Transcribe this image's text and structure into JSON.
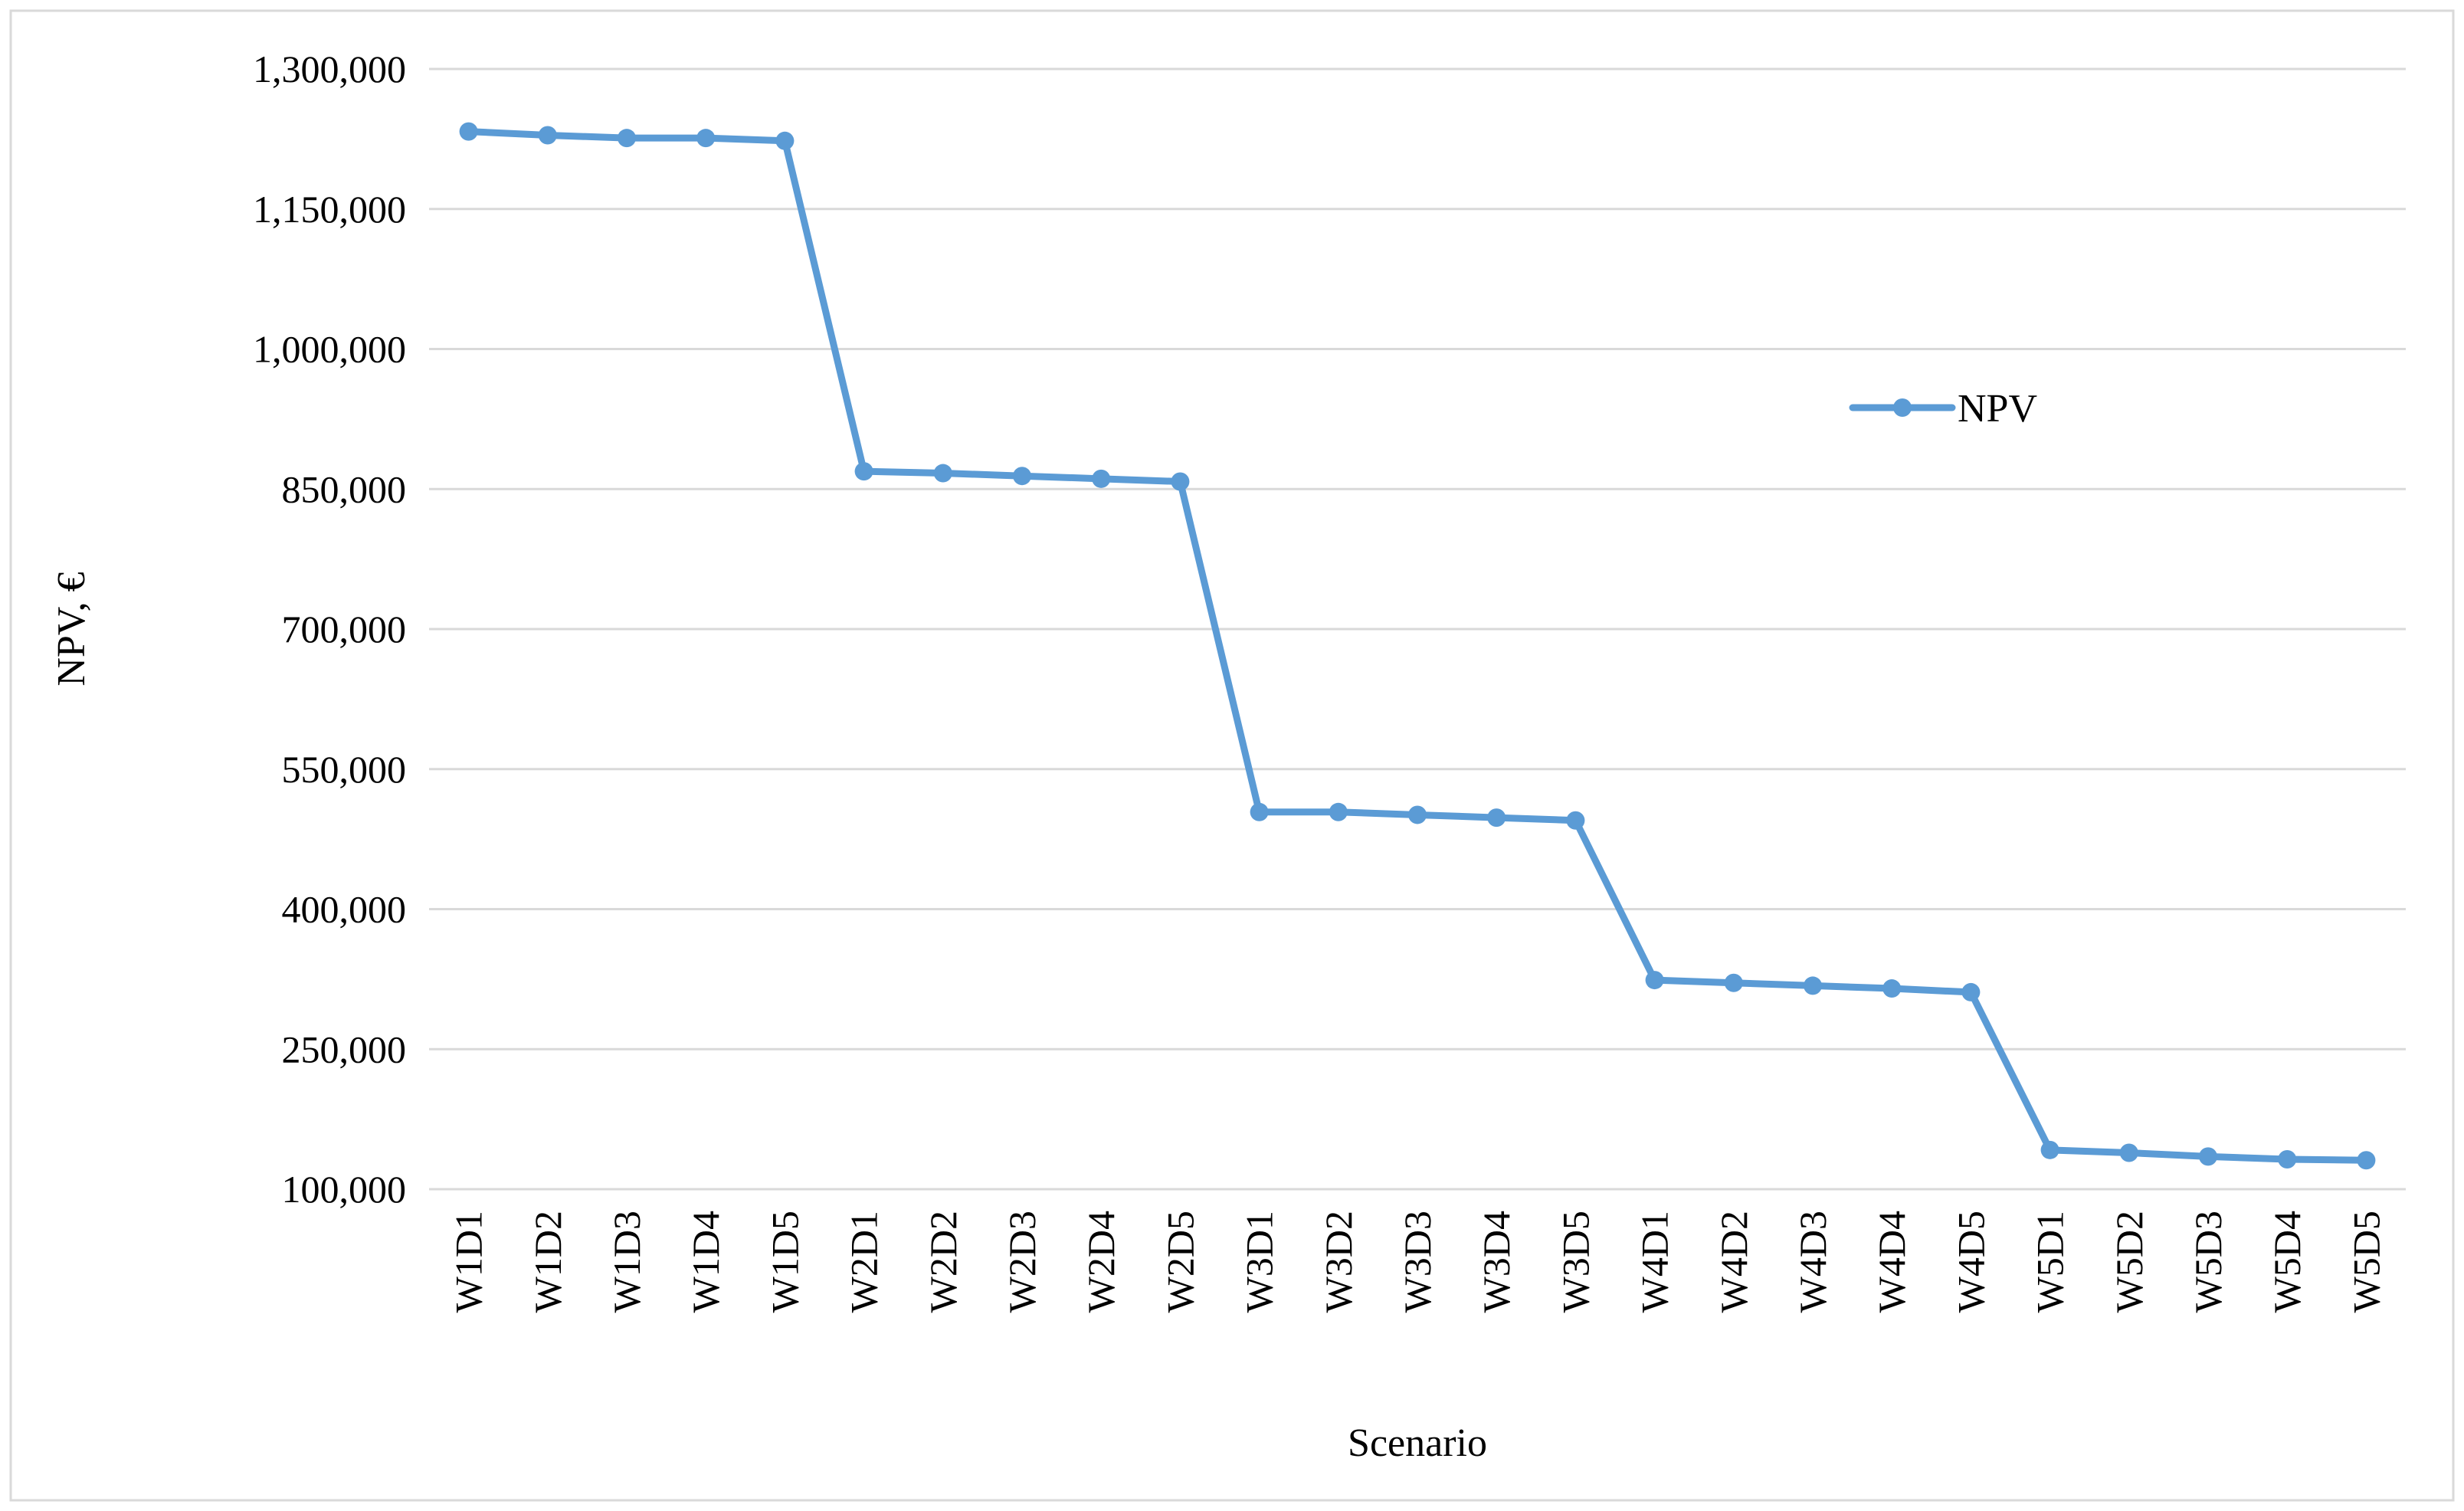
{
  "chart_data": {
    "type": "line",
    "categories": [
      "W1D1",
      "W1D2",
      "W1D3",
      "W1D4",
      "W1D5",
      "W2D1",
      "W2D2",
      "W2D3",
      "W2D4",
      "W2D5",
      "W3D1",
      "W3D2",
      "W3D3",
      "W3D4",
      "W3D5",
      "W4D1",
      "W4D2",
      "W4D3",
      "W4D4",
      "W4D5",
      "W5D1",
      "W5D2",
      "W5D3",
      "W5D4",
      "W5D5"
    ],
    "series": [
      {
        "name": "NPV",
        "color": "#5b9bd5",
        "values": [
          1233000,
          1229000,
          1226000,
          1226000,
          1223000,
          869000,
          867000,
          864000,
          861000,
          858000,
          504000,
          504000,
          501000,
          498000,
          495000,
          324000,
          321000,
          318000,
          315000,
          311000,
          142000,
          139000,
          135000,
          132000,
          131000
        ]
      }
    ],
    "xlabel": "Scenario",
    "ylabel": "NPV, €",
    "ylim": [
      100000,
      1300000
    ],
    "yticks": [
      100000,
      250000,
      400000,
      550000,
      700000,
      850000,
      1000000,
      1150000,
      1300000
    ],
    "yticklabels": [
      "100,000",
      "250,000",
      "400,000",
      "550,000",
      "700,000",
      "850,000",
      "1,000,000",
      "1,150,000",
      "1,300,000"
    ],
    "grid": "horizontal",
    "legend": {
      "placement": "right",
      "entries": [
        "NPV"
      ]
    },
    "colors": {
      "line": "#5b9bd5",
      "grid": "#d9d9d9",
      "border": "#d9d9d9"
    }
  }
}
